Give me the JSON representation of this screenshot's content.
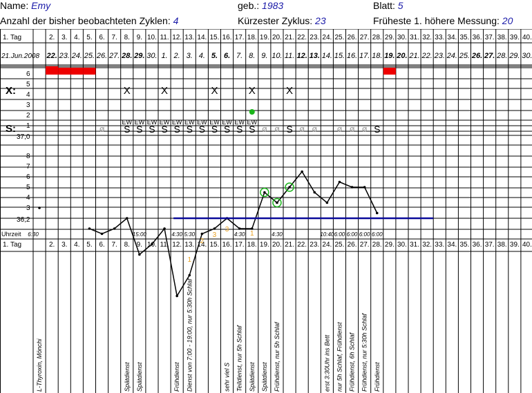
{
  "header": {
    "name_label": "Name:",
    "name_value": "Emy",
    "birth_label": "geb.:",
    "birth_value": "1983",
    "sheet_label": "Blatt:",
    "sheet_value": "5",
    "cycles_label": "Anzahl der bisher beobachteten Zyklen:",
    "cycles_value": "4",
    "shortest_label": "Kürzester Zyklus:",
    "shortest_value": "23",
    "earliest_label": "Früheste 1. höhere Messung:",
    "earliest_value": "20"
  },
  "row_labels": {
    "day": "1. Tag",
    "x": "X:",
    "s": "S:",
    "temp_base": "37,0",
    "temp_low": "36,2",
    "time": "Uhrzeit",
    "day_bottom": "1. Tag"
  },
  "bleeding_scale": [
    "6",
    "5",
    "4",
    "3",
    "2",
    "1"
  ],
  "temp_scale": [
    "8",
    "7",
    "6",
    "5",
    "4",
    "3"
  ],
  "x_scale": [
    "5",
    "4",
    "3",
    "2",
    "1"
  ],
  "days": [
    "1.",
    "2.",
    "3.",
    "4.",
    "5.",
    "6.",
    "7.",
    "8.",
    "9.",
    "10.",
    "11.",
    "12.",
    "13.",
    "14.",
    "15.",
    "16.",
    "17.",
    "18.",
    "19.",
    "20.",
    "21.",
    "22.",
    "23.",
    "24.",
    "25.",
    "26.",
    "27.",
    "28.",
    "29.",
    "30.",
    "31.",
    "32.",
    "33.",
    "34.",
    "35.",
    "36.",
    "37.",
    "38.",
    "39.",
    "40."
  ],
  "dates": [
    "21.Jun.2008",
    "22.",
    "23.",
    "24.",
    "25.",
    "26.",
    "27.",
    "28.",
    "29.",
    "30.",
    "1.",
    "2.",
    "3.",
    "4.",
    "5.",
    "6.",
    "7.",
    "8.",
    "9.",
    "10.",
    "11.",
    "12.",
    "13.",
    "14.",
    "15.",
    "16.",
    "17.",
    "18.",
    "19.",
    "20.",
    "21.",
    "22.",
    "23.",
    "24.",
    "25.",
    "26.",
    "27.",
    "28.",
    "29.",
    "30."
  ],
  "bold_dates": [
    2,
    8,
    9,
    15,
    16,
    22,
    23,
    29,
    30,
    36,
    37
  ],
  "bleeding": [
    0,
    6,
    5,
    5,
    5,
    0,
    0,
    0,
    0,
    0,
    0,
    0,
    0,
    0,
    0,
    0,
    0,
    0,
    0,
    0,
    0,
    0,
    0,
    0,
    0,
    0,
    0,
    0,
    5,
    0,
    0,
    0,
    0,
    0,
    0,
    0,
    0,
    0,
    0,
    0
  ],
  "x_marks": [
    8,
    11,
    15,
    18,
    21
  ],
  "x_glyph": "X",
  "s_marks": {
    "8": "S",
    "9": "S",
    "10": "S",
    "11": "S",
    "12": "S",
    "13": "S",
    "14": "S",
    "15": "S",
    "16": "S",
    "17": "S",
    "18": "S",
    "21": "S",
    "28": "S"
  },
  "s_faint": [
    6,
    19,
    20,
    22,
    23,
    25,
    26,
    27
  ],
  "s_faint_glyph": "ø",
  "ew_days": [
    8,
    9,
    10,
    11,
    12,
    13,
    14,
    15,
    16,
    17,
    18
  ],
  "ew_label": "EW",
  "green_dot_day": 18,
  "temps": [
    {
      "day": 1,
      "v": 36.3,
      "iso": true
    },
    {
      "day": 5,
      "v": 36.1
    },
    {
      "day": 6,
      "v": 36.05
    },
    {
      "day": 7,
      "v": 36.1
    },
    {
      "day": 8,
      "v": 36.2
    },
    {
      "day": 9,
      "v": 35.85
    },
    {
      "day": 10,
      "v": 35.95
    },
    {
      "day": 11,
      "v": 36.1
    },
    {
      "day": 12,
      "v": 35.45
    },
    {
      "day": 13,
      "v": 35.65
    },
    {
      "day": 14,
      "v": 36.05
    },
    {
      "day": 15,
      "v": 36.1
    },
    {
      "day": 16,
      "v": 36.2
    },
    {
      "day": 17,
      "v": 36.1
    },
    {
      "day": 18,
      "v": 36.1
    },
    {
      "day": 19,
      "v": 36.45,
      "circle": true
    },
    {
      "day": 20,
      "v": 36.35,
      "circle": true
    },
    {
      "day": 21,
      "v": 36.5,
      "circle": true
    },
    {
      "day": 22,
      "v": 36.65
    },
    {
      "day": 23,
      "v": 36.45
    },
    {
      "day": 24,
      "v": 36.35
    },
    {
      "day": 25,
      "v": 36.55
    },
    {
      "day": 26,
      "v": 36.5
    },
    {
      "day": 27,
      "v": 36.5
    },
    {
      "day": 28,
      "v": 36.25
    }
  ],
  "coverline": {
    "from_day": 12,
    "to_day": 32,
    "value": 36.2
  },
  "count_marks": [
    {
      "day": 13,
      "t": "1"
    },
    {
      "day": 14,
      "t": "2"
    },
    {
      "day": 15,
      "t": "3"
    },
    {
      "day": 16,
      "t": "3"
    },
    {
      "day": 18,
      "t": "1"
    }
  ],
  "times": [
    {
      "day": 1,
      "t": "6:30"
    },
    {
      "day": 9,
      "t": "15:00"
    },
    {
      "day": 12,
      "t": "4:30"
    },
    {
      "day": 13,
      "t": "5:30"
    },
    {
      "day": 17,
      "t": "4:30"
    },
    {
      "day": 20,
      "t": "4:30"
    },
    {
      "day": 24,
      "t": "10:40"
    },
    {
      "day": 25,
      "t": "6:00"
    },
    {
      "day": 26,
      "t": "6:00"
    },
    {
      "day": 27,
      "t": "6:00"
    },
    {
      "day": 28,
      "t": "6:00"
    }
  ],
  "notes": [
    {
      "day": 1,
      "t": "L-Thyroxin, Mönchi"
    },
    {
      "day": 8,
      "t": "Spätdienst"
    },
    {
      "day": 9,
      "t": "Spätdienst"
    },
    {
      "day": 12,
      "t": "Frühdienst"
    },
    {
      "day": 13,
      "t": "Dienst von 7:00 - 19:00, nur 5:30h Schlaf"
    },
    {
      "day": 16,
      "t": "sehr viel S"
    },
    {
      "day": 17,
      "t": "Teildienst, nur 5h Schlaf"
    },
    {
      "day": 18,
      "t": "Spätdienst"
    },
    {
      "day": 19,
      "t": "Spätdienst"
    },
    {
      "day": 20,
      "t": "Frühdienst, nur 5h Schlaf"
    },
    {
      "day": 24,
      "t": "erst 3:30Uhr ins Bett"
    },
    {
      "day": 25,
      "t": "nur 5h Schlaf, Frühdienst"
    },
    {
      "day": 26,
      "t": "Frühdienst, 6h Schlaf"
    },
    {
      "day": 27,
      "t": "Frühdienst, nur 5:30h Schlaf"
    },
    {
      "day": 28,
      "t": "Frühdienst"
    }
  ]
}
